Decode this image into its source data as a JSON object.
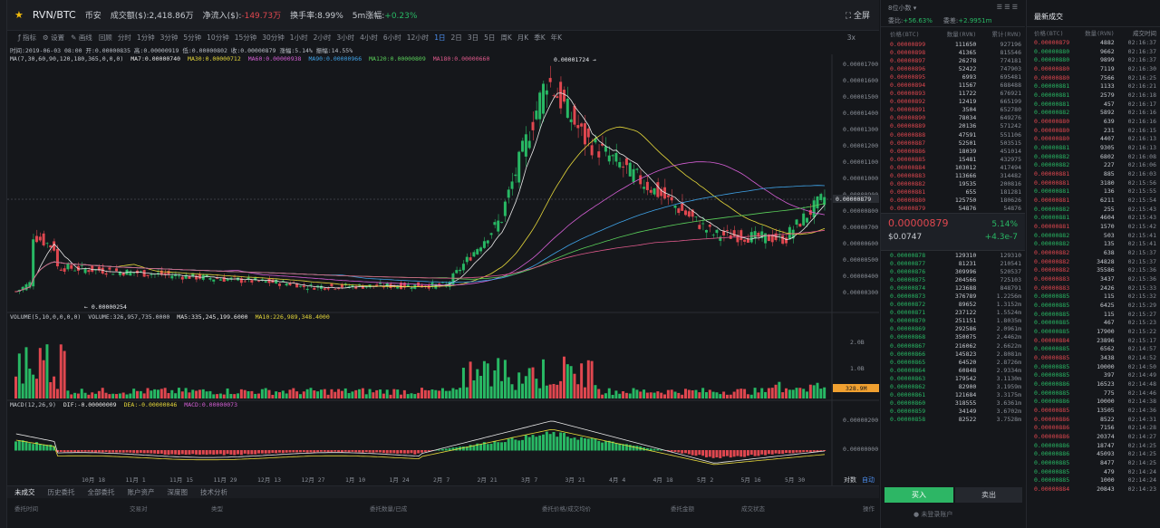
{
  "header": {
    "pair": "RVN/BTC",
    "market": "币安",
    "volume_label": "成交额($):",
    "volume_value": "2,418.86万",
    "inflow_label": "净流入($):",
    "inflow_value": "-149.73万",
    "turnover_label": "换手率:",
    "turnover_value": "8.99%",
    "change5m_label": "5m涨幅:",
    "change5m_value": "+0.23%",
    "fullscreen_label": "全屏"
  },
  "toolbar": {
    "indicator": "指标",
    "settings": "设置",
    "draw": "画线",
    "timeframes": [
      "回顾",
      "分时",
      "1分钟",
      "3分钟",
      "5分钟",
      "10分钟",
      "15分钟",
      "30分钟",
      "1小时",
      "2小时",
      "3小时",
      "4小时",
      "6小时",
      "12小时",
      "1日",
      "2日",
      "3日",
      "5日",
      "周K",
      "月K",
      "季K",
      "年K"
    ],
    "active_tf": "1日",
    "zoom": "3x"
  },
  "info": {
    "time": "时间:2019-06-03 08:00",
    "open": "开:0.00000835",
    "high": "高:0.00000919",
    "low": "低:0.00000802",
    "close": "收:0.00000879",
    "chg": "涨幅:5.14%",
    "amp": "振幅:14.55%"
  },
  "ma": {
    "params": "MA(7,30,60,90,120,180,365,0,0,0)",
    "ma7": "MA7:0.00000740",
    "ma30": "MA30:0.00000712",
    "ma60": "MA60:0.00000938",
    "ma90": "MA90:0.00000966",
    "ma120": "MA120:0.00000809",
    "ma180": "MA180:0.00000660"
  },
  "price_axis": [
    "0.00001700",
    "0.00001600",
    "0.00001500",
    "0.00001400",
    "0.00001300",
    "0.00001200",
    "0.00001100",
    "0.00001000",
    "0.00000900",
    "0.00000800",
    "0.00000700",
    "0.00000600",
    "0.00000500",
    "0.00000400",
    "0.00000300"
  ],
  "price_current_tag": "0.00000879",
  "high_mark": "0.00001724 →",
  "low_mark": "← 0.00000254",
  "volume": {
    "params": "VOLUME(5,10,0,0,0,0)",
    "volume": "VOLUME:326,957,735.0000",
    "ma5": "MA5:335,245,199.6000",
    "ma10": "MA10:226,989,348.4000",
    "axis": [
      "2.0B",
      "1.0B"
    ],
    "tag": "328.9M"
  },
  "macd": {
    "params": "MACD(12,26,9)",
    "dif": "DIF:-0.00000009",
    "dea": "DEA:-0.00000046",
    "macd": "MACD:0.00000073",
    "axis": [
      "0.00000200",
      "0.00000000"
    ]
  },
  "date_axis": [
    "10月 18",
    "11月 1",
    "11月 15",
    "11月 29",
    "12月 13",
    "12月 27",
    "1月 10",
    "1月 24",
    "2月 7",
    "2月 21",
    "3月 7",
    "3月 21",
    "4月 4",
    "4月 18",
    "5月 2",
    "5月 16",
    "5月 30"
  ],
  "bottom_right": {
    "duiji": "对数",
    "auto": "自动"
  },
  "bottom_tabs": [
    "未成交",
    "历史委托",
    "全部委托",
    "账户资产",
    "深度图",
    "技术分析"
  ],
  "bottom_cols": [
    "委托时间",
    "交易对",
    "类型",
    "委托数量/已成",
    "委托价格/成交均价",
    "委托金额",
    "成交状态",
    "操作"
  ],
  "orderbook": {
    "depth": "8位小数",
    "weibi_label": "委比:",
    "weibi": "+56.63%",
    "weicha_label": "委差:",
    "weicha": "+2.9951m",
    "cols": [
      "价格(BTC)",
      "数量(RVN)",
      "累计(RVN)"
    ],
    "asks": [
      [
        "0.00000899",
        "111650",
        "927196"
      ],
      [
        "0.00000898",
        "41365",
        "815546"
      ],
      [
        "0.00000897",
        "26278",
        "774181"
      ],
      [
        "0.00000896",
        "52422",
        "747903"
      ],
      [
        "0.00000895",
        "6993",
        "695481"
      ],
      [
        "0.00000894",
        "11567",
        "688488"
      ],
      [
        "0.00000893",
        "11722",
        "676921"
      ],
      [
        "0.00000892",
        "12419",
        "665199"
      ],
      [
        "0.00000891",
        "3504",
        "652780"
      ],
      [
        "0.00000890",
        "78034",
        "649276"
      ],
      [
        "0.00000889",
        "20136",
        "571242"
      ],
      [
        "0.00000888",
        "47591",
        "551106"
      ],
      [
        "0.00000887",
        "52501",
        "503515"
      ],
      [
        "0.00000886",
        "18039",
        "451014"
      ],
      [
        "0.00000885",
        "15481",
        "432975"
      ],
      [
        "0.00000884",
        "103012",
        "417494"
      ],
      [
        "0.00000883",
        "113666",
        "314482"
      ],
      [
        "0.00000882",
        "19535",
        "200816"
      ],
      [
        "0.00000881",
        "655",
        "181281"
      ],
      [
        "0.00000880",
        "125750",
        "180626"
      ],
      [
        "0.00000879",
        "54876",
        "54876"
      ]
    ],
    "last_price": "0.00000879",
    "last_chg": "5.14%",
    "last_usd": "$0.0747",
    "last_delta": "+4.3e-7",
    "bids": [
      [
        "0.00000878",
        "129310",
        "129310"
      ],
      [
        "0.00000877",
        "81231",
        "210541"
      ],
      [
        "0.00000876",
        "309996",
        "520537"
      ],
      [
        "0.00000875",
        "204566",
        "725103"
      ],
      [
        "0.00000874",
        "123688",
        "848791"
      ],
      [
        "0.00000873",
        "376789",
        "1.2256m"
      ],
      [
        "0.00000872",
        "89652",
        "1.3152m"
      ],
      [
        "0.00000871",
        "237122",
        "1.5524m"
      ],
      [
        "0.00000870",
        "251151",
        "1.8035m"
      ],
      [
        "0.00000869",
        "292586",
        "2.0961m"
      ],
      [
        "0.00000868",
        "350075",
        "2.4462m"
      ],
      [
        "0.00000867",
        "216062",
        "2.6622m"
      ],
      [
        "0.00000866",
        "145823",
        "2.8081m"
      ],
      [
        "0.00000865",
        "64520",
        "2.8726m"
      ],
      [
        "0.00000864",
        "60848",
        "2.9334m"
      ],
      [
        "0.00000863",
        "179542",
        "3.1130m"
      ],
      [
        "0.00000862",
        "82900",
        "3.1959m"
      ],
      [
        "0.00000861",
        "121684",
        "3.3175m"
      ],
      [
        "0.00000860",
        "318555",
        "3.6361m"
      ],
      [
        "0.00000859",
        "34149",
        "3.6702m"
      ],
      [
        "0.00000858",
        "82522",
        "3.7528m"
      ]
    ],
    "buy": "买入",
    "sell": "卖出",
    "login_hint": "未登录账户"
  },
  "trades": {
    "title": "最新成交",
    "cols": [
      "价格(BTC)",
      "数量(RVN)",
      "成交时间"
    ],
    "rows": [
      [
        "0.00000879",
        "4882",
        "02:16:37",
        "r"
      ],
      [
        "0.00000880",
        "9662",
        "02:16:37",
        "g"
      ],
      [
        "0.00000880",
        "9899",
        "02:16:37",
        "g"
      ],
      [
        "0.00000880",
        "7119",
        "02:16:30",
        "r"
      ],
      [
        "0.00000880",
        "7566",
        "02:16:25",
        "r"
      ],
      [
        "0.00000881",
        "1133",
        "02:16:21",
        "g"
      ],
      [
        "0.00000881",
        "2579",
        "02:16:18",
        "g"
      ],
      [
        "0.00000881",
        "457",
        "02:16:17",
        "g"
      ],
      [
        "0.00000882",
        "5892",
        "02:16:16",
        "g"
      ],
      [
        "0.00000880",
        "639",
        "02:16:16",
        "r"
      ],
      [
        "0.00000880",
        "231",
        "02:16:15",
        "r"
      ],
      [
        "0.00000880",
        "4407",
        "02:16:13",
        "r"
      ],
      [
        "0.00000881",
        "9305",
        "02:16:13",
        "g"
      ],
      [
        "0.00000882",
        "6802",
        "02:16:08",
        "g"
      ],
      [
        "0.00000882",
        "227",
        "02:16:06",
        "g"
      ],
      [
        "0.00000881",
        "885",
        "02:16:03",
        "r"
      ],
      [
        "0.00000881",
        "3180",
        "02:15:56",
        "r"
      ],
      [
        "0.00000881",
        "136",
        "02:15:55",
        "g"
      ],
      [
        "0.00000881",
        "6211",
        "02:15:54",
        "r"
      ],
      [
        "0.00000882",
        "255",
        "02:15:43",
        "g"
      ],
      [
        "0.00000881",
        "4604",
        "02:15:43",
        "g"
      ],
      [
        "0.00000881",
        "1570",
        "02:15:42",
        "r"
      ],
      [
        "0.00000882",
        "503",
        "02:15:41",
        "g"
      ],
      [
        "0.00000882",
        "135",
        "02:15:41",
        "g"
      ],
      [
        "0.00000882",
        "638",
        "02:15:37",
        "r"
      ],
      [
        "0.00000882",
        "34828",
        "02:15:37",
        "r"
      ],
      [
        "0.00000882",
        "35586",
        "02:15:36",
        "r"
      ],
      [
        "0.00000883",
        "3437",
        "02:15:36",
        "r"
      ],
      [
        "0.00000883",
        "2426",
        "02:15:33",
        "r"
      ],
      [
        "0.00000885",
        "115",
        "02:15:32",
        "g"
      ],
      [
        "0.00000885",
        "6425",
        "02:15:29",
        "g"
      ],
      [
        "0.00000885",
        "115",
        "02:15:27",
        "g"
      ],
      [
        "0.00000885",
        "467",
        "02:15:23",
        "g"
      ],
      [
        "0.00000885",
        "17900",
        "02:15:22",
        "g"
      ],
      [
        "0.00000884",
        "23896",
        "02:15:17",
        "r"
      ],
      [
        "0.00000885",
        "6562",
        "02:14:57",
        "g"
      ],
      [
        "0.00000885",
        "3438",
        "02:14:52",
        "r"
      ],
      [
        "0.00000885",
        "10000",
        "02:14:50",
        "g"
      ],
      [
        "0.00000885",
        "397",
        "02:14:49",
        "g"
      ],
      [
        "0.00000886",
        "16523",
        "02:14:48",
        "g"
      ],
      [
        "0.00000885",
        "775",
        "02:14:46",
        "g"
      ],
      [
        "0.00000886",
        "10000",
        "02:14:38",
        "g"
      ],
      [
        "0.00000885",
        "13505",
        "02:14:36",
        "r"
      ],
      [
        "0.00000886",
        "8522",
        "02:14:31",
        "r"
      ],
      [
        "0.00000886",
        "7156",
        "02:14:28",
        "r"
      ],
      [
        "0.00000886",
        "20374",
        "02:14:27",
        "r"
      ],
      [
        "0.00000886",
        "18747",
        "02:14:25",
        "g"
      ],
      [
        "0.00000886",
        "45093",
        "02:14:25",
        "g"
      ],
      [
        "0.00000885",
        "8477",
        "02:14:25",
        "g"
      ],
      [
        "0.00000885",
        "479",
        "02:14:24",
        "g"
      ],
      [
        "0.00000885",
        "1000",
        "02:14:24",
        "g"
      ],
      [
        "0.00000884",
        "20843",
        "02:14:23",
        "r"
      ]
    ]
  },
  "colors": {
    "up": "#28b864",
    "down": "#e0474f",
    "ma7": "#e8e8e8",
    "ma30": "#e6d83a",
    "ma60": "#d65fd6",
    "ma90": "#3fa3e8",
    "ma120": "#5ad05a",
    "ma180": "#e05a8c",
    "tag": "#f0a030"
  }
}
